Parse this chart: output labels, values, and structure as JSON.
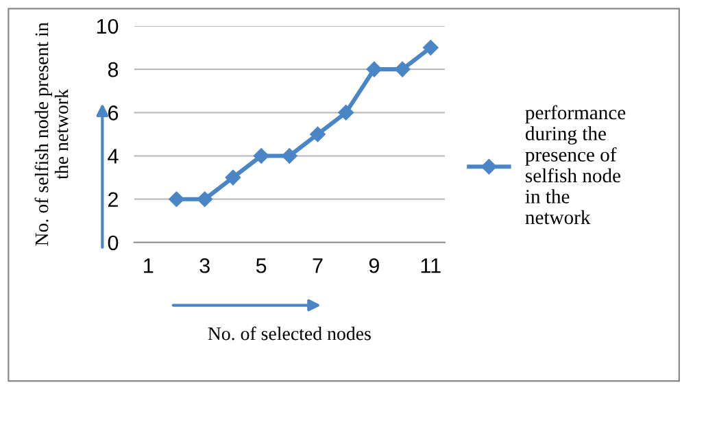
{
  "chart_data": {
    "type": "line",
    "xlabel": "No. of selected nodes",
    "ylabel": "No. of selfish node present in the network",
    "x": [
      2,
      3,
      4,
      5,
      6,
      7,
      8,
      9,
      10,
      11
    ],
    "series": [
      {
        "name": "performance during the presence of selfish node in the network",
        "color": "#4a86c5",
        "values": [
          2,
          2,
          3,
          4,
          4,
          5,
          6,
          8,
          8,
          9
        ]
      }
    ],
    "xlim": [
      0.5,
      11.5
    ],
    "xticks": [
      1,
      3,
      5,
      7,
      9,
      11
    ],
    "ylim": [
      0,
      10
    ],
    "yticks": [
      0,
      2,
      4,
      6,
      8,
      10
    ],
    "grid": "y",
    "legend": "right",
    "marker": "diamond",
    "line_style": "solid"
  }
}
